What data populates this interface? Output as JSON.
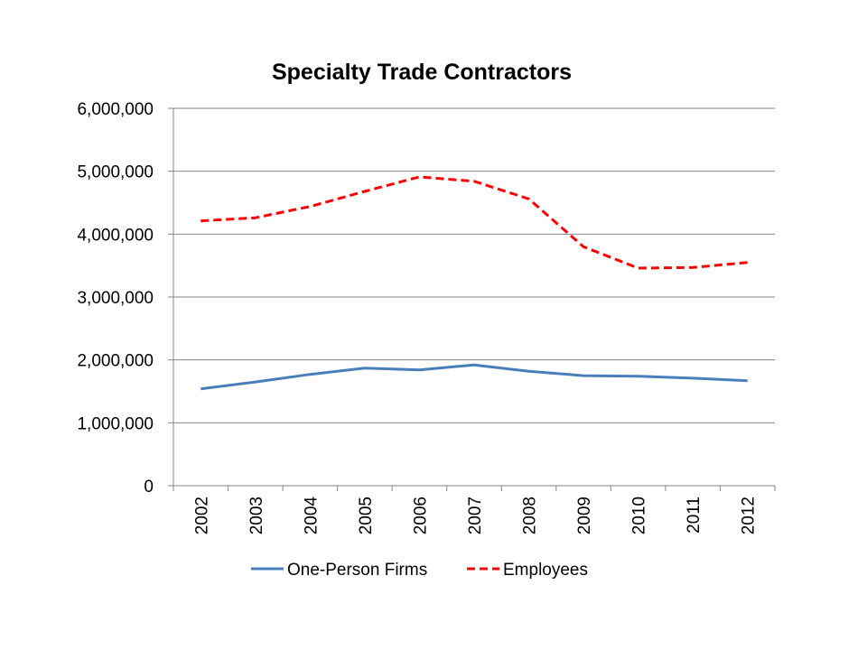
{
  "chart_data": {
    "type": "line",
    "title": "Specialty Trade Contractors",
    "xlabel": "",
    "ylabel": "",
    "categories": [
      "2002",
      "2003",
      "2004",
      "2005",
      "2006",
      "2007",
      "2008",
      "2009",
      "2010",
      "2011",
      "2012"
    ],
    "ylim": [
      0,
      6000000
    ],
    "yticks": [
      0,
      1000000,
      2000000,
      3000000,
      4000000,
      5000000,
      6000000
    ],
    "ytick_labels": [
      "0",
      "1,000,000",
      "2,000,000",
      "3,000,000",
      "4,000,000",
      "5,000,000",
      "6,000,000"
    ],
    "grid": true,
    "legend_position": "bottom",
    "series": [
      {
        "name": "One-Person Firms",
        "color": "#4a7ebb",
        "style": "solid",
        "values": [
          1540000,
          1650000,
          1770000,
          1870000,
          1840000,
          1920000,
          1820000,
          1750000,
          1740000,
          1710000,
          1670000
        ]
      },
      {
        "name": "Employees",
        "color": "#ff0000",
        "style": "dashed",
        "values": [
          4210000,
          4260000,
          4440000,
          4680000,
          4910000,
          4840000,
          4560000,
          3800000,
          3460000,
          3470000,
          3550000
        ]
      }
    ]
  }
}
